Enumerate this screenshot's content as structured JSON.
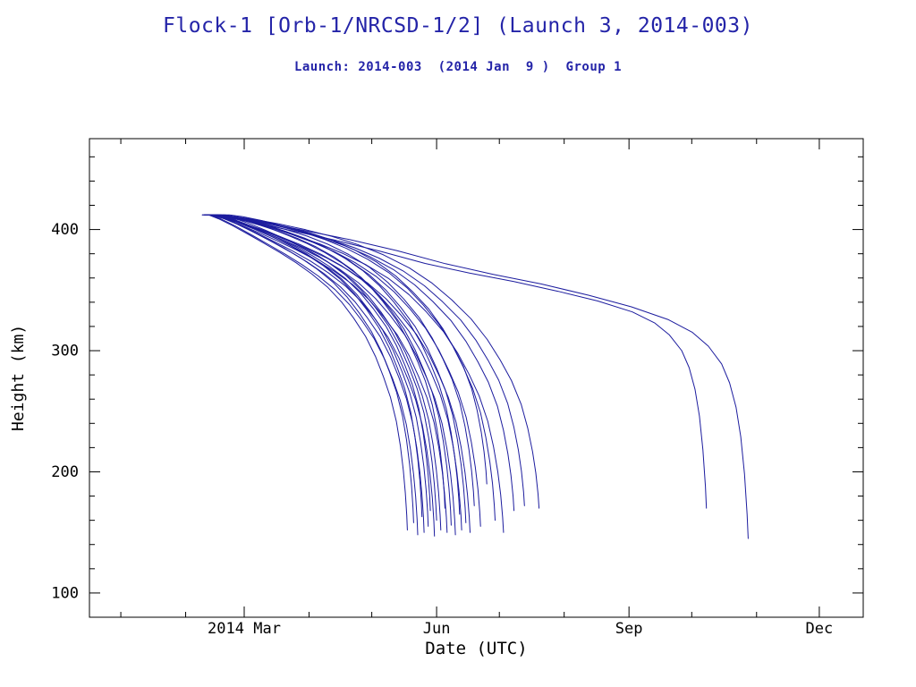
{
  "title": "Flock-1 [Orb-1/NRCSD-1/2] (Launch 3, 2014-003)",
  "subtitle": "Launch: 2014-003  (2014 Jan  9 )  Group 1",
  "colors": {
    "title_text": "#2424a8",
    "curve_line": "#1c1c9e",
    "axis": "#000000",
    "background": "#ffffff"
  },
  "chart_data": {
    "type": "line",
    "title": "Flock-1 [Orb-1/NRCSD-1/2] (Launch 3, 2014-003)",
    "subtitle": "Launch: 2014-003  (2014 Jan  9 )  Group 1",
    "xlabel": "Date (UTC)",
    "ylabel": "Height (km)",
    "x_unit": "day_of_year_2014",
    "xlim": [
      -15,
      355
    ],
    "ylim": [
      80,
      475
    ],
    "grid": false,
    "legend": "none",
    "x_major_ticks": [
      {
        "day": 59,
        "label": "2014 Mar"
      },
      {
        "day": 151,
        "label": "Jun"
      },
      {
        "day": 243,
        "label": "Sep"
      },
      {
        "day": 334,
        "label": "Dec"
      }
    ],
    "x_minor_days": [
      0,
      31,
      90,
      120,
      181,
      212,
      273,
      304
    ],
    "y_major_ticks": [
      100,
      200,
      300,
      400
    ],
    "y_minor_ticks": [
      120,
      140,
      160,
      180,
      220,
      240,
      260,
      280,
      320,
      340,
      360,
      380,
      420,
      440,
      460
    ],
    "start_height_km": 412,
    "profiles": {
      "main": {
        "base_end": 160,
        "points": [
          [
            0,
            412
          ],
          [
            0.05,
            410
          ],
          [
            0.12,
            406
          ],
          [
            0.2,
            400.5
          ],
          [
            0.28,
            394.5
          ],
          [
            0.36,
            388
          ],
          [
            0.44,
            380.5
          ],
          [
            0.52,
            371.5
          ],
          [
            0.6,
            360.5
          ],
          [
            0.67,
            348
          ],
          [
            0.73,
            334.5
          ],
          [
            0.79,
            319
          ],
          [
            0.84,
            302
          ],
          [
            0.88,
            285
          ],
          [
            0.915,
            268
          ],
          [
            0.945,
            248
          ],
          [
            0.965,
            228
          ],
          [
            0.98,
            208
          ],
          [
            0.99,
            190
          ],
          [
            0.997,
            172
          ],
          [
            1.0,
            160
          ]
        ]
      },
      "long": {
        "base_end": 170,
        "points": [
          [
            0,
            412
          ],
          [
            0.08,
            406
          ],
          [
            0.16,
            399
          ],
          [
            0.25,
            391
          ],
          [
            0.34,
            382
          ],
          [
            0.43,
            372
          ],
          [
            0.52,
            364
          ],
          [
            0.61,
            357
          ],
          [
            0.7,
            349
          ],
          [
            0.78,
            341
          ],
          [
            0.85,
            332
          ],
          [
            0.895,
            323
          ],
          [
            0.925,
            313
          ],
          [
            0.95,
            300
          ],
          [
            0.965,
            286
          ],
          [
            0.977,
            268
          ],
          [
            0.986,
            246
          ],
          [
            0.993,
            218
          ],
          [
            0.998,
            188
          ],
          [
            1.0,
            170
          ]
        ]
      }
    },
    "series": [
      {
        "s": 42,
        "e": 137,
        "h": 152,
        "o": -7,
        "p": "main"
      },
      {
        "s": 44,
        "e": 140,
        "h": 158,
        "o": -4,
        "p": "main"
      },
      {
        "s": 43,
        "e": 142,
        "h": 148,
        "o": -8,
        "p": "main"
      },
      {
        "s": 46,
        "e": 144,
        "h": 163,
        "o": -2,
        "p": "main"
      },
      {
        "s": 45,
        "e": 145,
        "h": 150,
        "o": -6,
        "p": "main"
      },
      {
        "s": 43,
        "e": 147,
        "h": 155,
        "o": 0,
        "p": "main"
      },
      {
        "s": 47,
        "e": 148,
        "h": 168,
        "o": -3,
        "p": "main"
      },
      {
        "s": 44,
        "e": 150,
        "h": 147,
        "o": -5,
        "p": "main"
      },
      {
        "s": 42,
        "e": 151,
        "h": 160,
        "o": 2,
        "p": "main"
      },
      {
        "s": 48,
        "e": 153,
        "h": 152,
        "o": -1,
        "p": "main"
      },
      {
        "s": 45,
        "e": 155,
        "h": 170,
        "o": 4,
        "p": "main"
      },
      {
        "s": 43,
        "e": 156,
        "h": 150,
        "o": -4,
        "p": "main"
      },
      {
        "s": 50,
        "e": 158,
        "h": 156,
        "o": 1,
        "p": "main"
      },
      {
        "s": 44,
        "e": 160,
        "h": 148,
        "o": -2,
        "p": "main"
      },
      {
        "s": 46,
        "e": 162,
        "h": 165,
        "o": 5,
        "p": "main"
      },
      {
        "s": 43,
        "e": 163,
        "h": 152,
        "o": 0,
        "p": "main"
      },
      {
        "s": 49,
        "e": 165,
        "h": 158,
        "o": 3,
        "p": "main"
      },
      {
        "s": 45,
        "e": 167,
        "h": 150,
        "o": -3,
        "p": "main"
      },
      {
        "s": 44,
        "e": 169,
        "h": 172,
        "o": 6,
        "p": "main"
      },
      {
        "s": 47,
        "e": 172,
        "h": 155,
        "o": 2,
        "p": "main"
      },
      {
        "s": 43,
        "e": 175,
        "h": 190,
        "o": 7,
        "p": "main"
      },
      {
        "s": 52,
        "e": 179,
        "h": 160,
        "o": 4,
        "p": "main"
      },
      {
        "s": 46,
        "e": 183,
        "h": 150,
        "o": 1,
        "p": "main"
      },
      {
        "s": 44,
        "e": 188,
        "h": 168,
        "o": 5,
        "p": "main"
      },
      {
        "s": 48,
        "e": 193,
        "h": 172,
        "o": 3,
        "p": "main"
      },
      {
        "s": 45,
        "e": 200,
        "h": 170,
        "o": 6,
        "p": "main"
      },
      {
        "s": 44,
        "e": 280,
        "h": 170,
        "o": 0,
        "p": "long"
      },
      {
        "s": 46,
        "e": 300,
        "h": 145,
        "o": 4,
        "p": "long"
      }
    ]
  }
}
